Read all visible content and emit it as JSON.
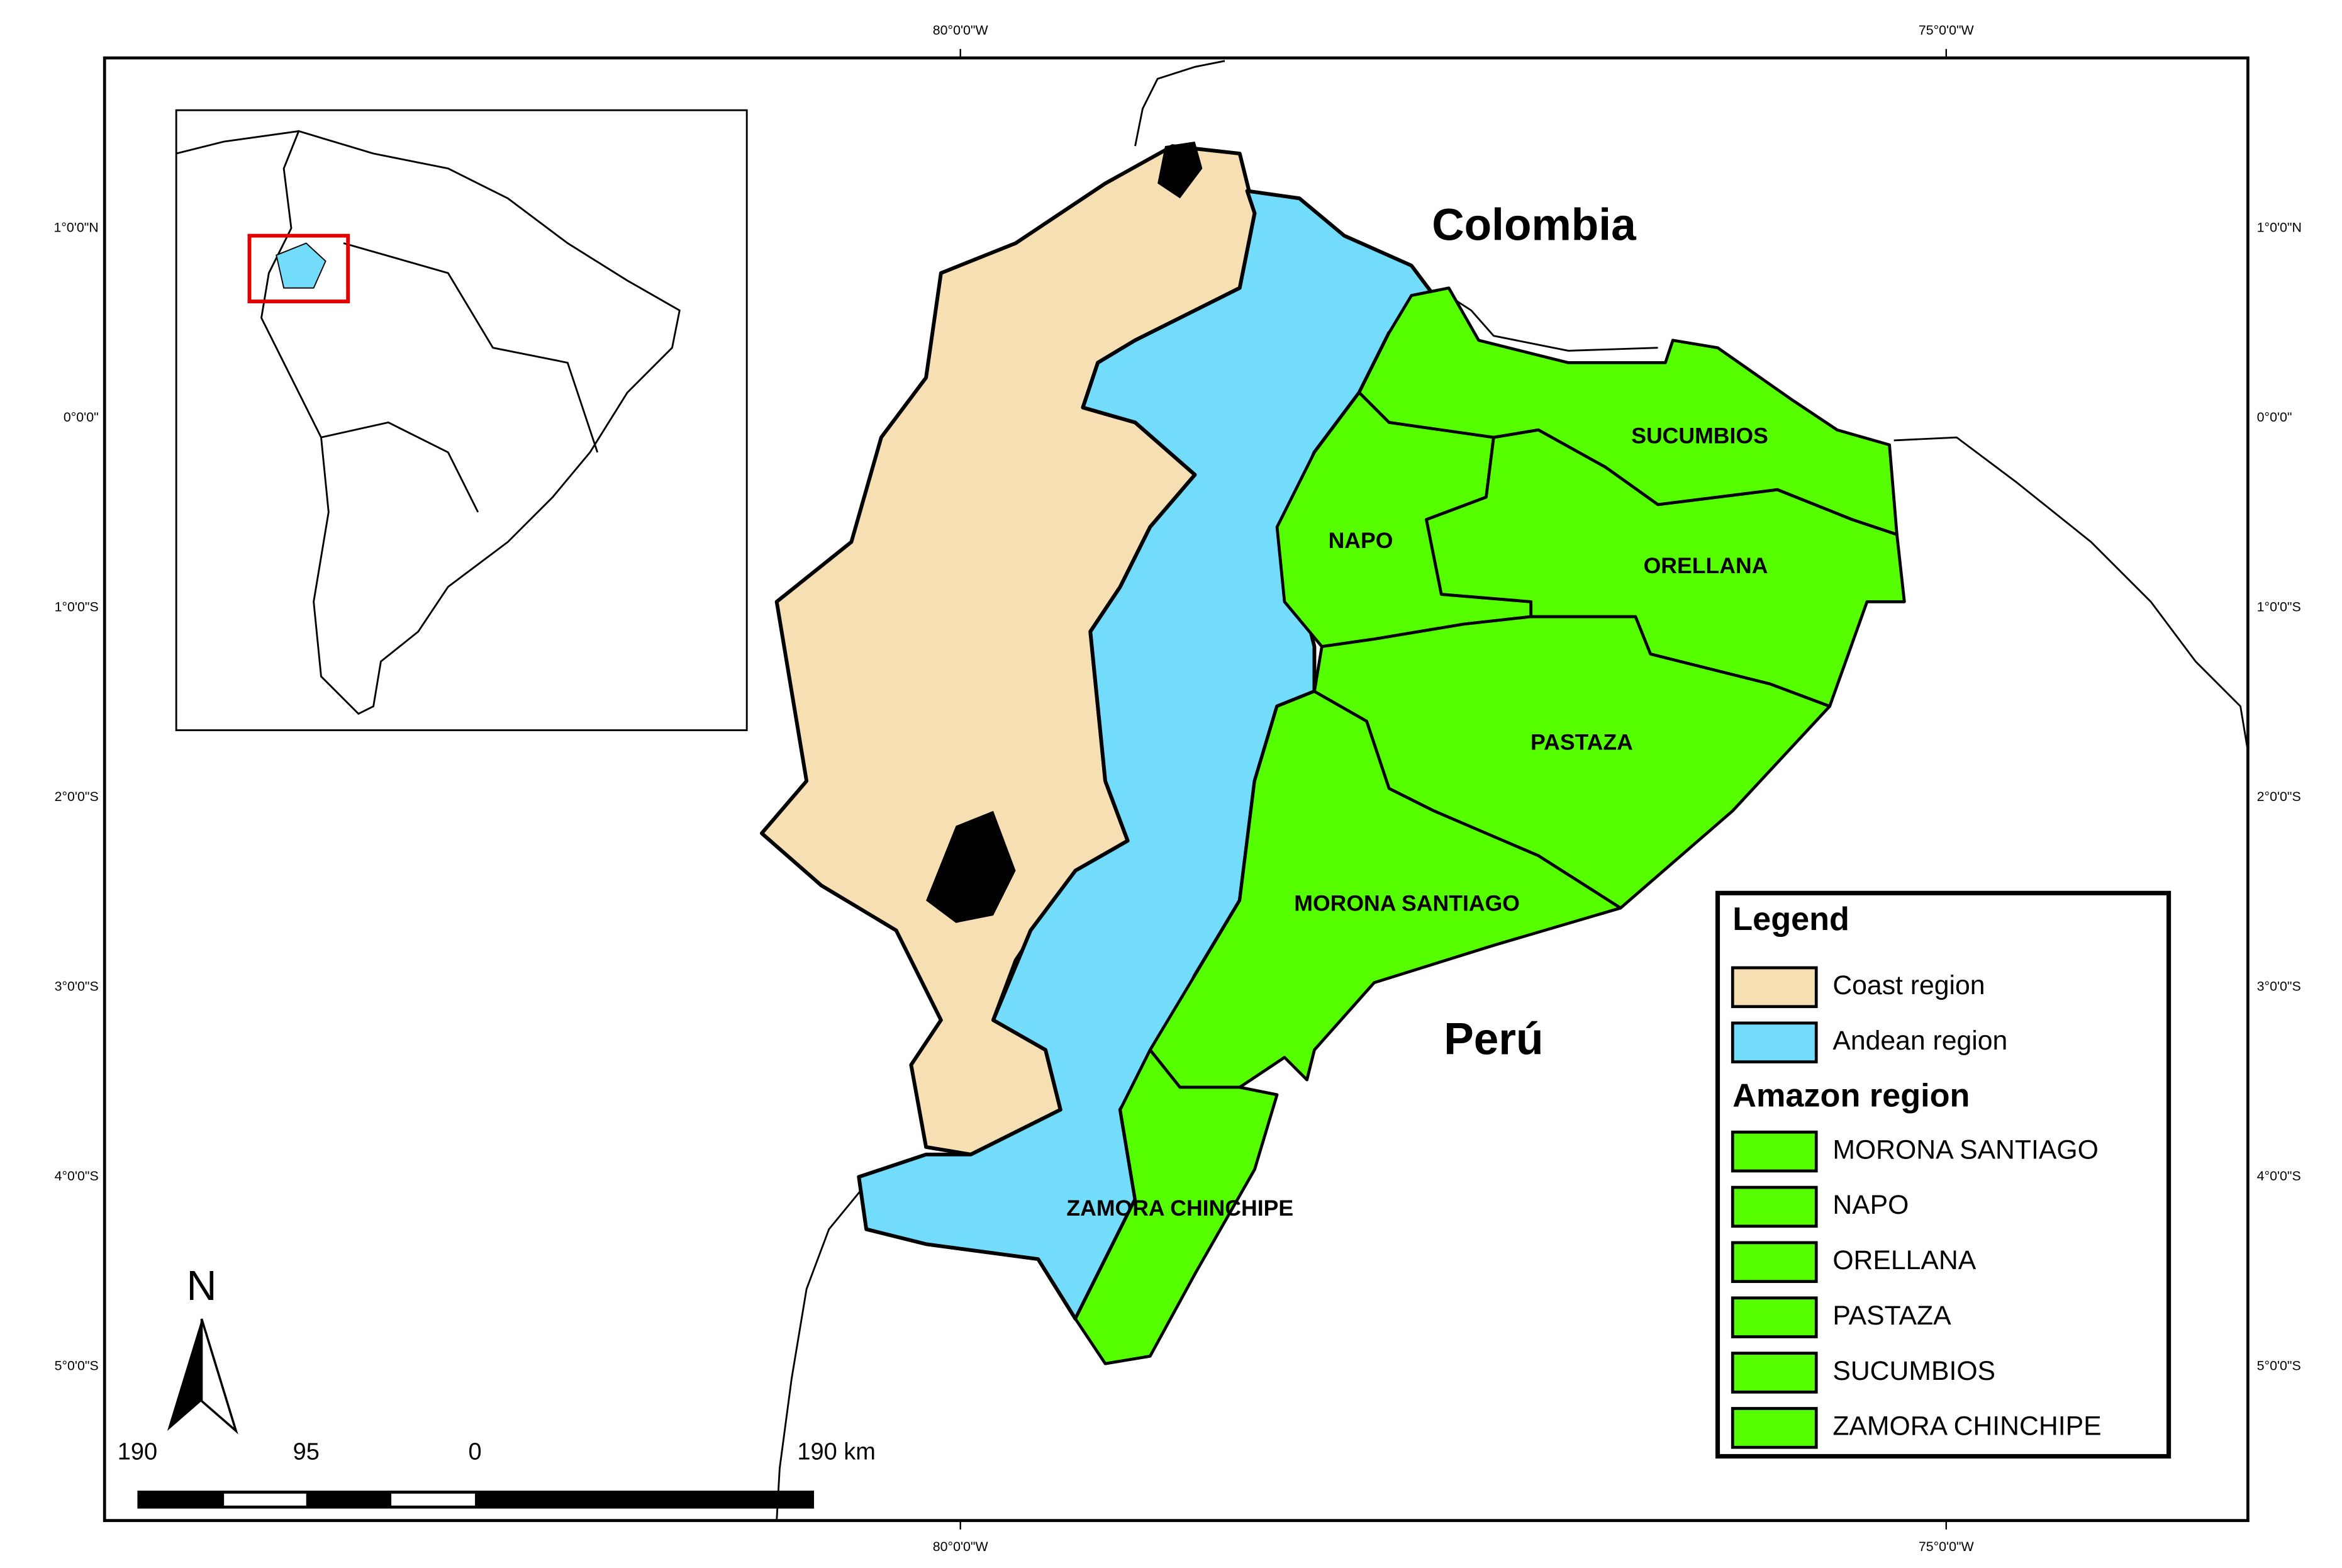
{
  "graticule": {
    "longitudes": [
      "80°0'0\"W",
      "75°0'0\"W"
    ],
    "latitudes": [
      "1°0'0\"N",
      "0°0'0\"",
      "1°0'0\"S",
      "2°0'0\"S",
      "3°0'0\"S",
      "4°0'0\"S",
      "5°0'0\"S"
    ]
  },
  "countries": [
    "Colombia",
    "Perú"
  ],
  "provinces": [
    "SUCUMBIOS",
    "NAPO",
    "ORELLANA",
    "PASTAZA",
    "MORONA SANTIAGO",
    "ZAMORA CHINCHIPE"
  ],
  "legend": {
    "title": "Legend",
    "regions": [
      {
        "label": "Coast region",
        "color": "#f7dfb4"
      },
      {
        "label": "Andean region",
        "color": "#72dcfa"
      }
    ],
    "amazon_title": "Amazon region",
    "amazon_color": "#55ff00",
    "amazon_items": [
      "MORONA SANTIAGO",
      "NAPO",
      "ORELLANA",
      "PASTAZA",
      "SUCUMBIOS",
      "ZAMORA CHINCHIPE"
    ]
  },
  "inset_highlight_color": "#e00000",
  "north_arrow": "N",
  "scale_bar": {
    "labels": [
      "190",
      "95",
      "0",
      "190 km"
    ]
  }
}
